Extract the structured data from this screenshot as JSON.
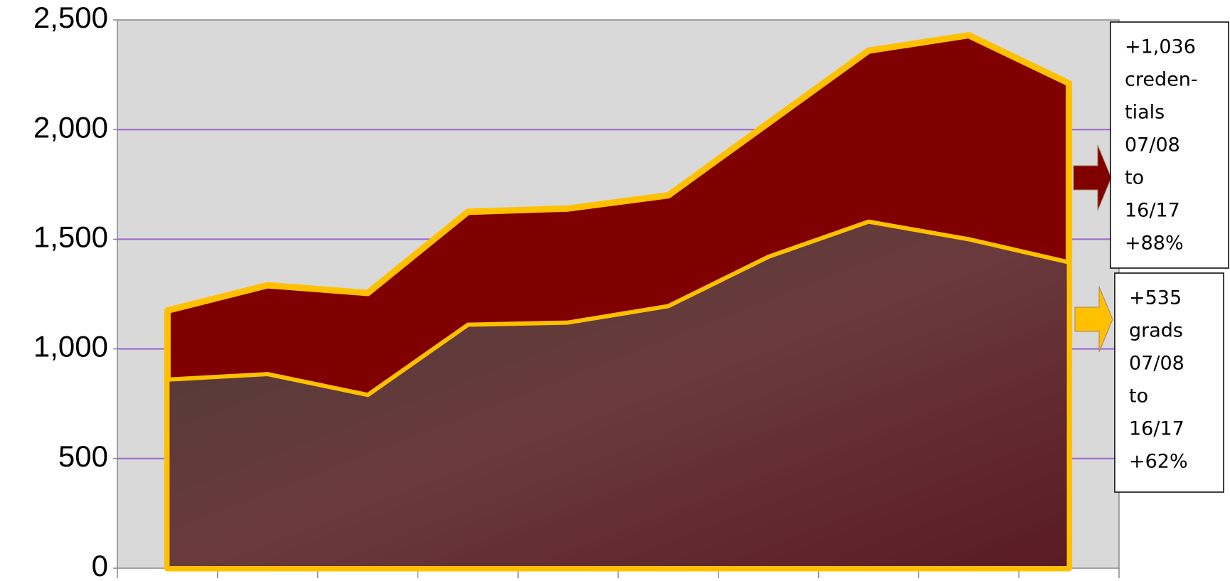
{
  "chart_data": {
    "type": "area",
    "categories": [
      null,
      null,
      null,
      null,
      null,
      null,
      null,
      null,
      null,
      null
    ],
    "series": [
      {
        "color": "#800000",
        "values": [
          1175,
          1290,
          1255,
          1625,
          1640,
          1700,
          2030,
          2360,
          2430,
          2211
        ]
      },
      {
        "color": "#3b2b2b",
        "values": [
          860,
          885,
          790,
          1110,
          1120,
          1195,
          1420,
          1580,
          1500,
          1395
        ]
      }
    ],
    "ylim": [
      0,
      2500
    ],
    "yticks": [
      0,
      500,
      {
        "value": 1000,
        "label": "1,000"
      },
      {
        "value": 1500,
        "label": "1,500"
      },
      {
        "value": 2000,
        "label": "2,000"
      },
      {
        "value": 2500,
        "label": "2,500"
      }
    ],
    "grid": true,
    "outline_color": "#ffc000",
    "annotations": [
      {
        "color": "#800000",
        "lines": [
          "+1,036",
          "creden-",
          "tials",
          "07/08",
          "to",
          "16/17",
          "+88%"
        ]
      },
      {
        "color": "#ffc000",
        "lines": [
          "+535",
          "grads",
          "07/08",
          "to",
          "16/17",
          "+62%"
        ]
      }
    ]
  }
}
